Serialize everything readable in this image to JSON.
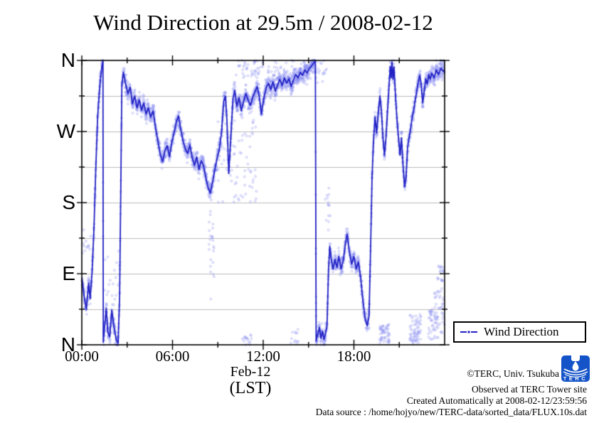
{
  "chart_data": {
    "type": "scatter",
    "title": "Wind Direction at 29.5m / 2008-02-12",
    "xlabel": "Feb-12",
    "xlabel2": "(LST)",
    "x_unit": "hour of day (LST)",
    "y_unit": "compass wind direction (N=360 top, W=270, S=180, E=90, N=0 bottom)",
    "xlim_hours": [
      0,
      24
    ],
    "ylim_deg": [
      0,
      360
    ],
    "x_ticks": [
      {
        "hour": 0,
        "label": "00:00"
      },
      {
        "hour": 6,
        "label": "06:00"
      },
      {
        "hour": 12,
        "label": "12:00"
      },
      {
        "hour": 18,
        "label": "18:00"
      }
    ],
    "x_minor_tick_hours": [
      3,
      9,
      15,
      21
    ],
    "y_ticks": [
      {
        "deg": 360,
        "label": "N"
      },
      {
        "deg": 270,
        "label": "W"
      },
      {
        "deg": 180,
        "label": "S"
      },
      {
        "deg": 90,
        "label": "E"
      },
      {
        "deg": 0,
        "label": "N"
      }
    ],
    "y_minor_tick_degs": [
      45,
      135,
      225,
      315
    ],
    "grid": "horizontal gray lines every 45 degrees, no vertical gridlines",
    "grid_degs": [
      45,
      90,
      135,
      180,
      225,
      270,
      315
    ],
    "legend": {
      "label": "Wind Direction",
      "position": "outside lower-right"
    },
    "colors": {
      "scatter": "#8a8ef0",
      "line": "#2222c4",
      "grid": "#bbbbbb",
      "frame": "#000000"
    },
    "series": [
      {
        "name": "Wind Direction",
        "style": "10-second samples as open circles plus dark running-mean line; direction wraps 0/360 producing vertical jumps",
        "mean_line_h_deg": [
          [
            0.0,
            85
          ],
          [
            0.15,
            62
          ],
          [
            0.3,
            45
          ],
          [
            0.45,
            78
          ],
          [
            0.55,
            58
          ],
          [
            0.68,
            92
          ],
          [
            0.8,
            145
          ],
          [
            0.92,
            220
          ],
          [
            1.05,
            290
          ],
          [
            1.2,
            330
          ],
          [
            1.32,
            352
          ],
          [
            1.4,
            359
          ],
          [
            1.42,
            3
          ],
          [
            1.5,
            22
          ],
          [
            1.62,
            46
          ],
          [
            1.72,
            16
          ],
          [
            1.85,
            10
          ],
          [
            1.98,
            44
          ],
          [
            2.1,
            26
          ],
          [
            2.28,
            6
          ],
          [
            2.4,
            2
          ],
          [
            2.5,
            60
          ],
          [
            2.58,
            200
          ],
          [
            2.65,
            330
          ],
          [
            2.75,
            345
          ],
          [
            2.9,
            330
          ],
          [
            3.05,
            318
          ],
          [
            3.2,
            326
          ],
          [
            3.35,
            305
          ],
          [
            3.5,
            315
          ],
          [
            3.65,
            300
          ],
          [
            3.8,
            310
          ],
          [
            3.95,
            297
          ],
          [
            4.1,
            306
          ],
          [
            4.25,
            292
          ],
          [
            4.4,
            300
          ],
          [
            4.55,
            288
          ],
          [
            4.72,
            296
          ],
          [
            4.9,
            272
          ],
          [
            5.05,
            256
          ],
          [
            5.2,
            240
          ],
          [
            5.35,
            232
          ],
          [
            5.5,
            246
          ],
          [
            5.65,
            252
          ],
          [
            5.8,
            238
          ],
          [
            5.95,
            256
          ],
          [
            6.1,
            268
          ],
          [
            6.25,
            282
          ],
          [
            6.4,
            290
          ],
          [
            6.55,
            272
          ],
          [
            6.7,
            258
          ],
          [
            6.85,
            248
          ],
          [
            7.0,
            242
          ],
          [
            7.15,
            253
          ],
          [
            7.3,
            237
          ],
          [
            7.45,
            227
          ],
          [
            7.6,
            238
          ],
          [
            7.75,
            222
          ],
          [
            7.9,
            233
          ],
          [
            8.05,
            227
          ],
          [
            8.2,
            212
          ],
          [
            8.35,
            199
          ],
          [
            8.5,
            192
          ],
          [
            8.65,
            206
          ],
          [
            8.8,
            222
          ],
          [
            8.95,
            236
          ],
          [
            9.1,
            248
          ],
          [
            9.25,
            270
          ],
          [
            9.38,
            308
          ],
          [
            9.5,
            315
          ],
          [
            9.6,
            284
          ],
          [
            9.72,
            217
          ],
          [
            9.85,
            260
          ],
          [
            10.0,
            312
          ],
          [
            10.12,
            322
          ],
          [
            10.25,
            302
          ],
          [
            10.4,
            313
          ],
          [
            10.55,
            296
          ],
          [
            10.7,
            308
          ],
          [
            10.85,
            318
          ],
          [
            11.0,
            310
          ],
          [
            11.15,
            303
          ],
          [
            11.3,
            313
          ],
          [
            11.45,
            320
          ],
          [
            11.6,
            327
          ],
          [
            11.75,
            313
          ],
          [
            11.88,
            292
          ],
          [
            12.05,
            313
          ],
          [
            12.2,
            326
          ],
          [
            12.35,
            331
          ],
          [
            12.5,
            323
          ],
          [
            12.65,
            333
          ],
          [
            12.8,
            321
          ],
          [
            12.95,
            329
          ],
          [
            13.1,
            336
          ],
          [
            13.25,
            328
          ],
          [
            13.4,
            338
          ],
          [
            13.55,
            331
          ],
          [
            13.7,
            337
          ],
          [
            13.85,
            327
          ],
          [
            14.0,
            335
          ],
          [
            14.15,
            342
          ],
          [
            14.3,
            338
          ],
          [
            14.45,
            345
          ],
          [
            14.6,
            341
          ],
          [
            14.75,
            348
          ],
          [
            14.9,
            344
          ],
          [
            15.05,
            350
          ],
          [
            15.2,
            353
          ],
          [
            15.35,
            357
          ],
          [
            15.45,
            359
          ],
          [
            15.5,
            5
          ],
          [
            15.6,
            13
          ],
          [
            15.72,
            22
          ],
          [
            15.82,
            8
          ],
          [
            15.92,
            17
          ],
          [
            16.02,
            7
          ],
          [
            16.12,
            14
          ],
          [
            16.22,
            24
          ],
          [
            16.32,
            95
          ],
          [
            16.4,
            125
          ],
          [
            16.5,
            108
          ],
          [
            16.62,
            96
          ],
          [
            16.75,
            108
          ],
          [
            16.88,
            98
          ],
          [
            17.0,
            112
          ],
          [
            17.15,
            96
          ],
          [
            17.3,
            107
          ],
          [
            17.45,
            130
          ],
          [
            17.55,
            140
          ],
          [
            17.7,
            118
          ],
          [
            17.85,
            102
          ],
          [
            18.0,
            112
          ],
          [
            18.15,
            96
          ],
          [
            18.3,
            105
          ],
          [
            18.45,
            84
          ],
          [
            18.6,
            55
          ],
          [
            18.75,
            32
          ],
          [
            18.88,
            24
          ],
          [
            19.0,
            36
          ],
          [
            19.1,
            120
          ],
          [
            19.2,
            212
          ],
          [
            19.3,
            260
          ],
          [
            19.4,
            288
          ],
          [
            19.5,
            268
          ],
          [
            19.62,
            296
          ],
          [
            19.72,
            315
          ],
          [
            19.82,
            296
          ],
          [
            19.92,
            262
          ],
          [
            20.02,
            240
          ],
          [
            20.12,
            262
          ],
          [
            20.22,
            296
          ],
          [
            20.32,
            326
          ],
          [
            20.4,
            352
          ],
          [
            20.46,
            338
          ],
          [
            20.52,
            358
          ],
          [
            20.58,
            336
          ],
          [
            20.65,
            352
          ],
          [
            20.75,
            315
          ],
          [
            20.85,
            285
          ],
          [
            20.95,
            262
          ],
          [
            21.05,
            240
          ],
          [
            21.15,
            262
          ],
          [
            21.25,
            226
          ],
          [
            21.35,
            200
          ],
          [
            21.45,
            212
          ],
          [
            21.55,
            250
          ],
          [
            21.65,
            262
          ],
          [
            21.75,
            274
          ],
          [
            21.85,
            287
          ],
          [
            21.95,
            297
          ],
          [
            22.05,
            309
          ],
          [
            22.15,
            320
          ],
          [
            22.25,
            332
          ],
          [
            22.35,
            341
          ],
          [
            22.45,
            330
          ],
          [
            22.55,
            306
          ],
          [
            22.65,
            321
          ],
          [
            22.75,
            337
          ],
          [
            22.85,
            330
          ],
          [
            22.95,
            342
          ],
          [
            23.05,
            336
          ],
          [
            23.15,
            344
          ],
          [
            23.3,
            338
          ],
          [
            23.45,
            348
          ],
          [
            23.6,
            342
          ],
          [
            23.75,
            350
          ],
          [
            23.9,
            346
          ],
          [
            24.0,
            348
          ]
        ],
        "scatter_spread_deg": 16,
        "scatter_points_per_hour": 150,
        "extra_scatter_clusters": [
          {
            "h0": 8.4,
            "h1": 8.75,
            "d0": 55,
            "d1": 195,
            "n": 26
          },
          {
            "h0": 9.0,
            "h1": 11.6,
            "d0": 180,
            "d1": 285,
            "n": 70
          },
          {
            "h0": 10.2,
            "h1": 12.0,
            "d0": 338,
            "d1": 360,
            "n": 45
          },
          {
            "h0": 12.3,
            "h1": 16.2,
            "d0": 330,
            "d1": 360,
            "n": 80
          },
          {
            "h0": 10.6,
            "h1": 11.3,
            "d0": 0,
            "d1": 14,
            "n": 16
          },
          {
            "h0": 13.8,
            "h1": 14.5,
            "d0": 0,
            "d1": 25,
            "n": 12
          },
          {
            "h0": 19.7,
            "h1": 20.35,
            "d0": 2,
            "d1": 26,
            "n": 55
          },
          {
            "h0": 21.7,
            "h1": 22.45,
            "d0": 2,
            "d1": 40,
            "n": 70
          },
          {
            "h0": 22.9,
            "h1": 23.6,
            "d0": 5,
            "d1": 45,
            "n": 40
          },
          {
            "h0": 23.3,
            "h1": 24.0,
            "d0": 15,
            "d1": 75,
            "n": 45
          },
          {
            "h0": 23.5,
            "h1": 23.95,
            "d0": 80,
            "d1": 100,
            "n": 20
          },
          {
            "h0": 1.5,
            "h1": 2.5,
            "d0": 50,
            "d1": 120,
            "n": 18
          },
          {
            "h0": 0.0,
            "h1": 0.6,
            "d0": 115,
            "d1": 150,
            "n": 12
          },
          {
            "h0": 16.1,
            "h1": 16.45,
            "d0": 140,
            "d1": 200,
            "n": 14
          }
        ],
        "seed": 42
      }
    ]
  },
  "annotations": {
    "copyright": "©TERC, Univ. Tsukuba",
    "observed": "Observed at TERC Tower site",
    "created": "Created Automatically at 2008-02-12/23:59:56",
    "datasource": "Data source : /home/hojyo/new/TERC-data/sorted_data/FLUX.10s.dat"
  },
  "logo": {
    "text": "TERC",
    "color": "#1453c8"
  }
}
